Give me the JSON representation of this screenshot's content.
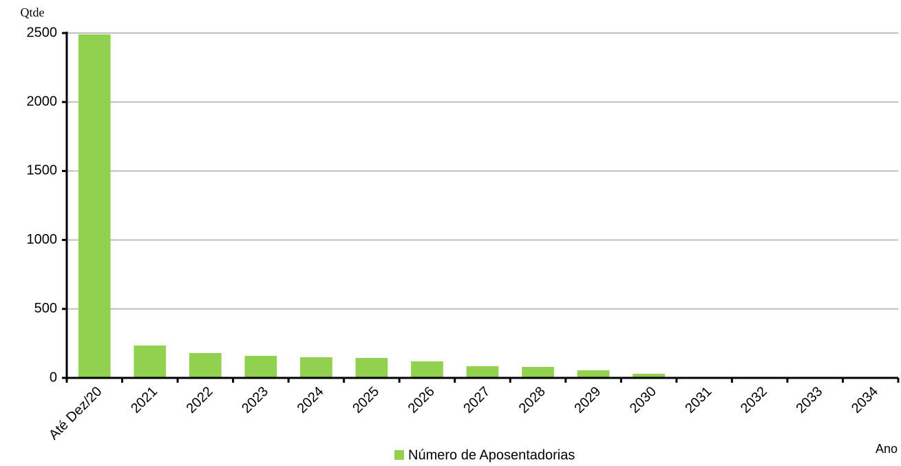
{
  "chart_data": {
    "type": "bar",
    "ylabel": "Qtde",
    "xlabel": "Ano",
    "categories": [
      "Até Dez/20",
      "2021",
      "2022",
      "2023",
      "2024",
      "2025",
      "2026",
      "2027",
      "2028",
      "2029",
      "2030",
      "2031",
      "2032",
      "2033",
      "2034"
    ],
    "series": [
      {
        "name": "Número de Aposentadorias",
        "color": "#92d050",
        "values": [
          2490,
          235,
          180,
          160,
          150,
          145,
          120,
          85,
          80,
          55,
          30,
          0,
          0,
          0,
          0
        ]
      }
    ],
    "ylim": [
      0,
      2500
    ],
    "yticks": [
      0,
      500,
      1000,
      1500,
      2000,
      2500
    ],
    "grid": true,
    "legend": "bottom"
  }
}
